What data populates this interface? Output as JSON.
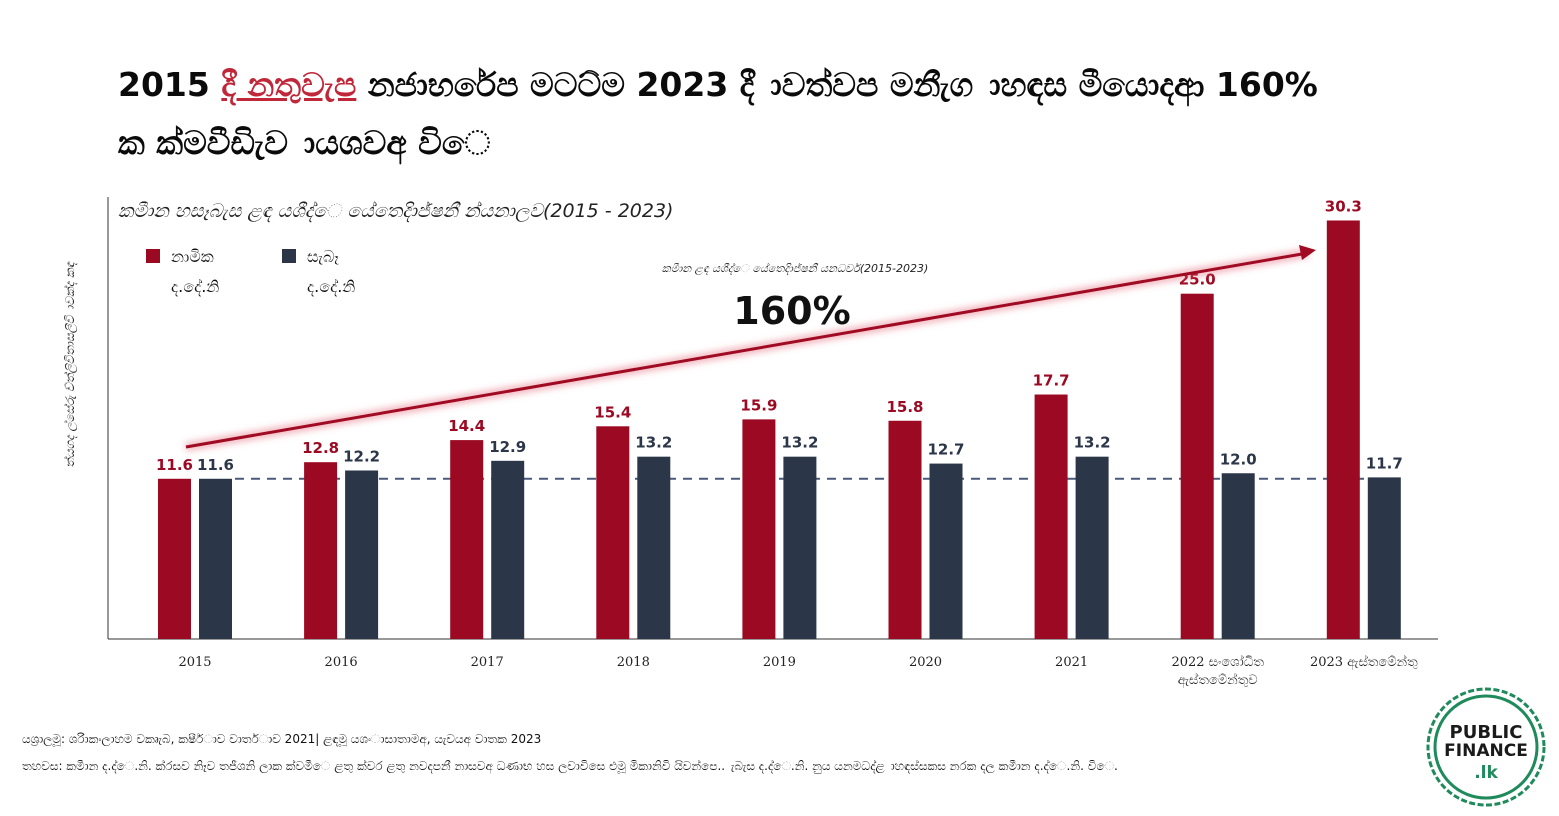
{
  "title": {
    "part1": "2015 ",
    "highlight": "දී නතුවැප",
    "part2": " නජාභරේප මටට්ම 2023 දී ාවත්වප මනීැග ාහඳස මීයොදආ 160%",
    "line2": "ක ක්මවීඩිැව ායශවඅ විෙ"
  },
  "chart_title": "කමීාන හසෑබැස ළඳ යශීද්ෙ යේතෙදිාජ්ෂනී න්යනාලව(2015 - 2023)",
  "y_axis_label": "ත්යගද ල්සේරු ච්ත්ලිවිතාසලීවි ාවක්ද කඳ",
  "chart_data": {
    "type": "bar",
    "categories": [
      "2015",
      "2016",
      "2017",
      "2018",
      "2019",
      "2020",
      "2021",
      "2022 සංශෝධිත ඇස්තමේන්තුව",
      "2023 ඇස්තමේන්තු"
    ],
    "series": [
      {
        "name": "නාමික ද.දේ.නි",
        "color": "#9b0a22",
        "values": [
          11.6,
          12.8,
          14.4,
          15.4,
          15.9,
          15.8,
          17.7,
          25.0,
          30.3
        ]
      },
      {
        "name": "සැබෑ ද.දේ.නි",
        "color": "#2b3648",
        "values": [
          11.6,
          12.2,
          12.9,
          13.2,
          13.2,
          12.7,
          13.2,
          12.0,
          11.7
        ]
      }
    ],
    "ylim": [
      0,
      32
    ],
    "grid": false,
    "legend": "top-left",
    "reference_line_value": 11.6,
    "annotation": {
      "label": "කමීාන ළඳ යශීද්ෙ යේතෙදිාජ්ෂනී යනධර්ව(2015-2023)",
      "value": "160%"
    }
  },
  "footer": {
    "source": "යශ්‍රාලමූ: ශරිාකංලාහම වකෘැබ, කෂීර්ාව වාතර්ාව 2021| ළඳමූ යශංාසාතාමඅ, යැවයඅ වාතක 2023",
    "note": "තහවස: කමීාන ද.ද්ෙ.නි. ක්රසව නිෑව තජීශනි ලාක ක්වමීෙ ළතු ක්වර ළතු නවදපනී නාසවඅ ධණාභ හස ලවාවිසෙ එමූ මිකානිවි යිවන්පෙ.. ැබැස ද.ද්ෙ.නි. නුය යනමධද්ළ ාහඳස්සකස නරක දල කමීාන ද.ද්ෙ.නි. විෙ."
  },
  "logo": {
    "line1": "PUBLIC",
    "line2": "FINANCE",
    "line3": ".lk",
    "color": "#1f8a5b"
  }
}
